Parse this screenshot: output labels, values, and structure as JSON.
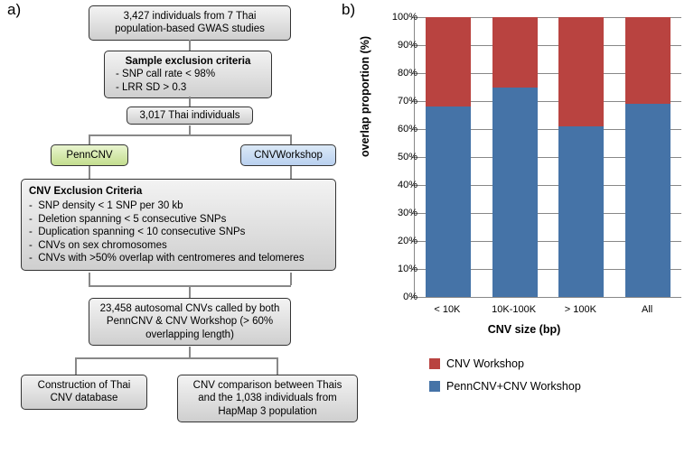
{
  "panel_a_label": "a)",
  "panel_b_label": "b)",
  "flow": {
    "start": "3,427 individuals from 7 Thai population-based GWAS studies",
    "sample_ex_title": "Sample exclusion criteria",
    "sample_ex_items": [
      "SNP call rate < 98%",
      "LRR SD > 0.3"
    ],
    "after_sample": "3,017 Thai individuals",
    "penncnv": "PennCNV",
    "cnvworkshop": "CNVWorkshop",
    "cnv_ex_title": "CNV Exclusion Criteria",
    "cnv_ex_items": [
      "SNP density < 1 SNP per 30 kb",
      "Deletion spanning <  5 consecutive SNPs",
      "Duplication spanning < 10 consecutive SNPs",
      "CNVs on sex chromosomes",
      "CNVs with >50% overlap with centromeres and telomeres"
    ],
    "both_called": "23,458 autosomal CNVs called by both PennCNV & CNV Workshop (> 60% overlapping length)",
    "out_left": "Construction of Thai CNV database",
    "out_right": "CNV comparison between Thais and the 1,038 individuals from HapMap 3 population"
  },
  "chart": {
    "type": "stacked-bar",
    "y_label": "overlap proportion (%)",
    "x_label": "CNV size (bp)",
    "y_lim": [
      0,
      100
    ],
    "y_tick_step": 10,
    "categories": [
      "< 10K",
      "10K-100K",
      "> 100K",
      "All"
    ],
    "series": [
      {
        "name": "PennCNV+CNV Workshop",
        "color": "#4573a7",
        "values": [
          68,
          75,
          61,
          69
        ]
      },
      {
        "name": "CNV Workshop",
        "color": "#b94340",
        "values": [
          32,
          25,
          39,
          31
        ]
      }
    ],
    "bar_width_pct": 17,
    "background_color": "#ffffff",
    "grid_color": "#888888",
    "tick_fontsize": 11,
    "axis_title_fontsize": 12.5
  }
}
